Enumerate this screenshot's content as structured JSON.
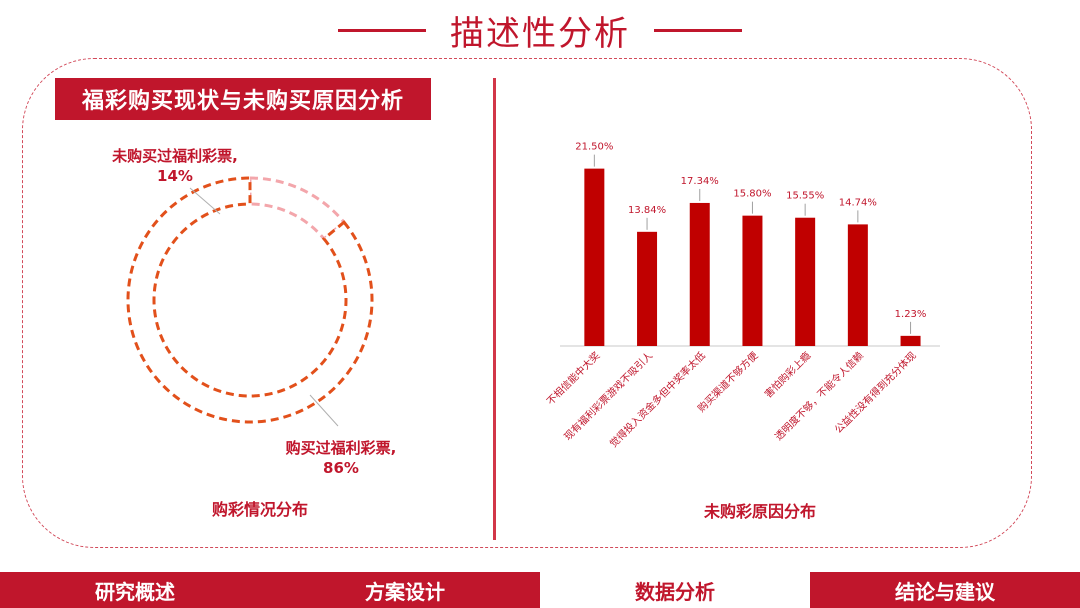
{
  "header": {
    "title": "描述性分析"
  },
  "left_panel": {
    "badge": "福彩购买现状与未购买原因分析",
    "label_not_bought_name": "未购买过福利彩票,",
    "label_not_bought_value": "14%",
    "label_bought_name": "购买过福利彩票,",
    "label_bought_value": "86%",
    "caption": "购彩情况分布"
  },
  "right_panel": {
    "caption": "未购彩原因分布"
  },
  "nav": {
    "items": [
      {
        "label": "研究概述",
        "active": false
      },
      {
        "label": "方案设计",
        "active": false
      },
      {
        "label": "数据分析",
        "active": true
      },
      {
        "label": "结论与建议",
        "active": false
      }
    ]
  },
  "colors": {
    "brand": "#c0162c",
    "bar": "#c00000",
    "donut_bought": "#e2501b",
    "donut_not_bought": "#f3a6ab"
  },
  "chart_data": [
    {
      "type": "pie",
      "variant": "donut",
      "categories": [
        "未购买过福利彩票",
        "购买过福利彩票"
      ],
      "values": [
        14,
        86
      ],
      "unit": "%",
      "title": "购彩情况分布"
    },
    {
      "type": "bar",
      "categories": [
        "不相信能中大奖",
        "现有福利彩票游戏不吸引人",
        "觉得投入资金多但中奖率太低",
        "购买渠道不够方便",
        "害怕购彩上瘾",
        "透明度不够，不能令人信赖",
        "公益性没有得到充分体现"
      ],
      "values": [
        21.5,
        13.84,
        17.34,
        15.8,
        15.55,
        14.74,
        1.23
      ],
      "value_labels": [
        "21.50%",
        "13.84%",
        "17.34%",
        "15.80%",
        "15.55%",
        "14.74%",
        "1.23%"
      ],
      "title": "未购彩原因分布",
      "ylim": [
        0,
        24
      ],
      "grid": false
    }
  ]
}
